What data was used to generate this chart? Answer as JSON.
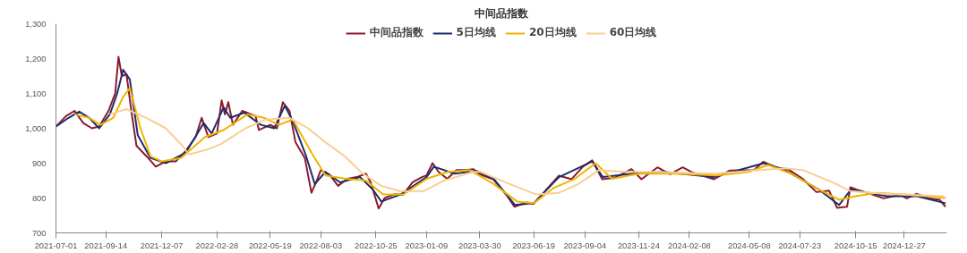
{
  "chart_data": {
    "type": "line",
    "title": "中间品指数",
    "legend": "top",
    "grid": false,
    "marker": "none",
    "line_style": "solid",
    "xlim": [
      "2021-07-01",
      "2025-03-01"
    ],
    "xticks": [
      {
        "value": "2021-07-01",
        "label": "2021-07-01"
      },
      {
        "value": "2021-09-14",
        "label": "2021-09-14"
      },
      {
        "value": "2021-12-07",
        "label": "2021-12-07"
      },
      {
        "value": "2022-02-28",
        "label": "2022-02-28"
      },
      {
        "value": "2022-05-19",
        "label": "2022-05-19"
      },
      {
        "value": "2022-08-03",
        "label": "2022-08-03"
      },
      {
        "value": "2022-10-25",
        "label": "2022-10-25"
      },
      {
        "value": "2023-01-09",
        "label": "2023-01-09"
      },
      {
        "value": "2023-03-30",
        "label": "2023-03-30"
      },
      {
        "value": "2023-06-19",
        "label": "2023-06-19"
      },
      {
        "value": "2023-09-04",
        "label": "2023-09-04"
      },
      {
        "value": "2023-11-24",
        "label": "2023-11-24"
      },
      {
        "value": "2024-02-08",
        "label": "2024-02-08"
      },
      {
        "value": "2024-05-08",
        "label": "2024-05-08"
      },
      {
        "value": "2024-07-23",
        "label": "2024-07-23"
      },
      {
        "value": "2024-10-15",
        "label": "2024-10-15"
      },
      {
        "value": "2024-12-27",
        "label": "2024-12-27"
      }
    ],
    "ylim": [
      700,
      1300
    ],
    "yticks": [
      700,
      800,
      900,
      {
        "value": 1000,
        "label": "1,000"
      },
      {
        "value": 1100,
        "label": "1,100"
      },
      {
        "value": 1200,
        "label": "1,200"
      },
      {
        "value": 1300,
        "label": "1,300"
      }
    ],
    "series": [
      {
        "name": "中间品指数",
        "color": "#8b1a2e",
        "x": [
          "2021-07-01",
          "2021-07-16",
          "2021-07-29",
          "2021-08-11",
          "2021-08-24",
          "2021-09-04",
          "2021-09-18",
          "2021-09-28",
          "2021-10-03",
          "2021-10-08",
          "2021-10-15",
          "2021-10-23",
          "2021-10-30",
          "2021-11-14",
          "2021-11-28",
          "2021-12-13",
          "2021-12-28",
          "2022-01-12",
          "2022-01-27",
          "2022-02-05",
          "2022-02-15",
          "2022-02-28",
          "2022-03-07",
          "2022-03-12",
          "2022-03-17",
          "2022-03-24",
          "2022-04-07",
          "2022-04-27",
          "2022-05-02",
          "2022-05-19",
          "2022-05-29",
          "2022-06-07",
          "2022-06-17",
          "2022-06-26",
          "2022-07-10",
          "2022-07-20",
          "2022-07-27",
          "2022-08-03",
          "2022-08-17",
          "2022-08-29",
          "2022-09-12",
          "2022-09-26",
          "2022-10-10",
          "2022-10-17",
          "2022-10-29",
          "2022-11-07",
          "2022-11-21",
          "2022-12-05",
          "2022-12-19",
          "2023-01-02",
          "2023-01-09",
          "2023-01-18",
          "2023-01-27",
          "2023-02-09",
          "2023-02-23",
          "2023-03-09",
          "2023-03-20",
          "2023-03-30",
          "2023-04-19",
          "2023-05-09",
          "2023-05-21",
          "2023-06-08",
          "2023-06-19",
          "2023-07-08",
          "2023-07-27",
          "2023-08-15",
          "2023-09-01",
          "2023-09-15",
          "2023-09-30",
          "2023-10-19",
          "2023-11-13",
          "2023-11-28",
          "2023-12-22",
          "2024-01-10",
          "2024-01-29",
          "2024-02-13",
          "2024-03-16",
          "2024-04-09",
          "2024-05-15",
          "2024-05-29",
          "2024-06-17",
          "2024-07-05",
          "2024-07-28",
          "2024-08-17",
          "2024-09-05",
          "2024-09-17",
          "2024-10-02",
          "2024-10-07",
          "2024-10-17",
          "2024-11-06",
          "2024-11-26",
          "2024-12-21",
          "2024-12-31",
          "2025-01-14",
          "2025-02-03",
          "2025-02-18",
          "2025-02-27"
        ],
        "values": [
          1005,
          1035,
          1050,
          1015,
          1000,
          1005,
          1050,
          1100,
          1205,
          1150,
          1155,
          1040,
          950,
          920,
          890,
          905,
          905,
          935,
          975,
          1030,
          975,
          985,
          1080,
          1040,
          1075,
          1010,
          1050,
          1035,
          995,
          1010,
          1000,
          1075,
          1050,
          960,
          915,
          815,
          845,
          880,
          865,
          835,
          855,
          860,
          870,
          845,
          770,
          800,
          810,
          810,
          845,
          860,
          865,
          900,
          875,
          855,
          880,
          880,
          883,
          868,
          854,
          809,
          775,
          787,
          783,
          824,
          864,
          854,
          890,
          908,
          854,
          858,
          883,
          854,
          888,
          868,
          888,
          873,
          854,
          879,
          880,
          904,
          888,
          883,
          854,
          817,
          821,
          772,
          775,
          831,
          824,
          812,
          799,
          809,
          799,
          812,
          799,
          795,
          775
        ]
      },
      {
        "name": "5日均线",
        "color": "#1f2d6b",
        "x": [
          "2021-07-01",
          "2021-07-20",
          "2021-08-05",
          "2021-08-20",
          "2021-09-04",
          "2021-09-20",
          "2021-10-01",
          "2021-10-10",
          "2021-10-20",
          "2021-11-01",
          "2021-11-20",
          "2021-12-13",
          "2022-01-12",
          "2022-02-08",
          "2022-02-20",
          "2022-03-10",
          "2022-03-20",
          "2022-04-10",
          "2022-05-05",
          "2022-05-25",
          "2022-06-10",
          "2022-06-22",
          "2022-07-12",
          "2022-07-25",
          "2022-08-10",
          "2022-09-01",
          "2022-10-01",
          "2022-10-20",
          "2022-11-02",
          "2022-12-01",
          "2023-01-09",
          "2023-01-20",
          "2023-02-20",
          "2023-03-25",
          "2023-04-20",
          "2023-05-22",
          "2023-06-19",
          "2023-07-27",
          "2023-09-15",
          "2023-10-01",
          "2023-11-15",
          "2024-01-01",
          "2024-03-15",
          "2024-05-30",
          "2024-07-01",
          "2024-08-20",
          "2024-09-20",
          "2024-10-08",
          "2024-10-20",
          "2024-12-01",
          "2025-01-15",
          "2025-02-27"
        ],
        "values": [
          1005,
          1030,
          1048,
          1030,
          1000,
          1040,
          1100,
          1168,
          1140,
          980,
          915,
          900,
          930,
          1015,
          985,
          1060,
          1030,
          1045,
          1010,
          1000,
          1065,
          1020,
          920,
          840,
          875,
          845,
          860,
          825,
          790,
          810,
          860,
          890,
          870,
          878,
          855,
          780,
          785,
          860,
          905,
          860,
          870,
          875,
          860,
          900,
          880,
          825,
          780,
          825,
          820,
          805,
          805,
          785
        ]
      },
      {
        "name": "20日均线",
        "color": "#f0b400",
        "x": [
          "2021-07-29",
          "2021-08-20",
          "2021-09-06",
          "2021-09-25",
          "2021-10-10",
          "2021-10-20",
          "2021-11-05",
          "2021-11-20",
          "2021-12-07",
          "2022-01-05",
          "2022-02-10",
          "2022-03-10",
          "2022-04-15",
          "2022-05-10",
          "2022-06-01",
          "2022-06-22",
          "2022-07-20",
          "2022-08-10",
          "2022-09-10",
          "2022-10-10",
          "2022-11-05",
          "2022-12-05",
          "2023-01-09",
          "2023-02-10",
          "2023-03-15",
          "2023-04-20",
          "2023-05-25",
          "2023-06-19",
          "2023-07-20",
          "2023-08-20",
          "2023-09-20",
          "2023-10-15",
          "2023-11-24",
          "2024-01-15",
          "2024-03-20",
          "2024-05-08",
          "2024-06-05",
          "2024-07-10",
          "2024-08-20",
          "2024-09-20",
          "2024-10-15",
          "2024-11-15",
          "2025-01-15",
          "2025-02-27"
        ],
        "values": [
          1040,
          1030,
          1010,
          1030,
          1090,
          1115,
          1000,
          920,
          905,
          915,
          975,
          995,
          1040,
          1030,
          1010,
          1025,
          930,
          865,
          855,
          850,
          810,
          810,
          855,
          875,
          880,
          840,
          790,
          785,
          830,
          855,
          900,
          855,
          870,
          870,
          865,
          875,
          895,
          870,
          825,
          795,
          805,
          815,
          808,
          800
        ]
      },
      {
        "name": "60日均线",
        "color": "#f8cf90",
        "x": [
          "2021-09-20",
          "2021-10-15",
          "2021-11-14",
          "2021-12-13",
          "2022-01-07",
          "2022-01-17",
          "2022-02-15",
          "2022-03-06",
          "2022-04-12",
          "2022-05-12",
          "2022-06-17",
          "2022-07-15",
          "2022-08-10",
          "2022-09-08",
          "2022-10-05",
          "2022-11-02",
          "2022-11-30",
          "2023-01-05",
          "2023-02-04",
          "2023-03-20",
          "2023-03-31",
          "2023-05-14",
          "2023-06-23",
          "2023-07-27",
          "2023-08-25",
          "2023-09-25",
          "2023-11-01",
          "2023-12-17",
          "2024-03-16",
          "2024-06-30",
          "2024-07-28",
          "2024-09-10",
          "2024-10-07",
          "2024-11-26",
          "2025-02-25"
        ],
        "values": [
          1040,
          1055,
          1030,
          1000,
          950,
          925,
          940,
          955,
          1000,
          1025,
          1030,
          1000,
          960,
          920,
          870,
          835,
          820,
          820,
          850,
          875,
          875,
          840,
          810,
          815,
          840,
          880,
          875,
          875,
          870,
          885,
          880,
          845,
          820,
          812,
          805
        ]
      }
    ]
  }
}
